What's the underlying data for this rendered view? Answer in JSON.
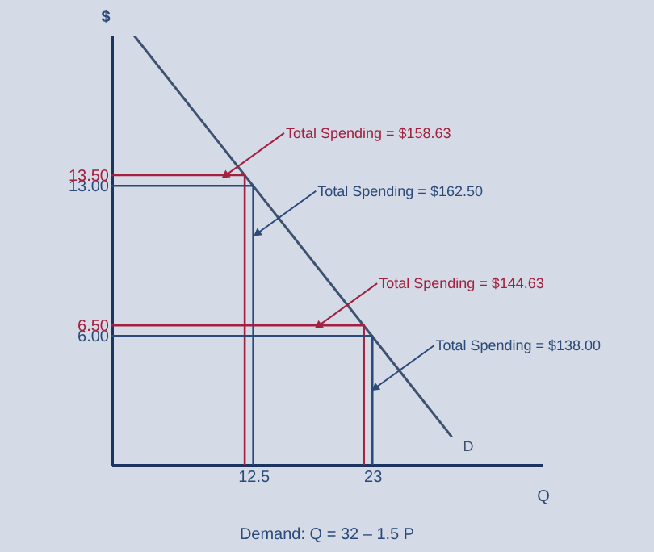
{
  "chart_data": {
    "type": "line",
    "title": "Demand: Q = 32 – 1.5 P",
    "xlabel": "Q",
    "ylabel": "$",
    "xlim": [
      0,
      38
    ],
    "ylim": [
      0,
      20
    ],
    "xticks": [
      12.5,
      23
    ],
    "yticks": [
      {
        "value": 6,
        "label": "6.00"
      },
      {
        "value": 6.5,
        "label": "6.50"
      },
      {
        "value": 13,
        "label": "13.00"
      },
      {
        "value": 13.5,
        "label": "13.50"
      }
    ],
    "grid": false,
    "marker": "none",
    "line_style": "solid",
    "series": [
      {
        "color": "#3d5170",
        "x": [
          2,
          30
        ],
        "values": [
          20,
          1.3
        ]
      },
      {
        "color": "#a3203f",
        "x": [
          0,
          11.75,
          11.75
        ],
        "values": [
          13.5,
          13.5,
          0
        ]
      },
      {
        "color": "#2b4a7a",
        "x": [
          0,
          12.5,
          12.5
        ],
        "values": [
          13,
          13,
          0
        ]
      },
      {
        "color": "#a3203f",
        "x": [
          0,
          22.25,
          22.25
        ],
        "values": [
          6.5,
          6.5,
          0
        ]
      },
      {
        "color": "#2b4a7a",
        "x": [
          0,
          23,
          23
        ],
        "values": [
          6,
          6,
          0
        ]
      }
    ],
    "annotations": [
      {
        "text": "D",
        "x": 30,
        "y": 1.3
      },
      {
        "text": "Total Spending = $158.63",
        "x": 10.1,
        "y": 13.5
      },
      {
        "text": "Total Spending = $162.50",
        "x": 12.9,
        "y": 10.8
      },
      {
        "text": "Total Spending = $144.63",
        "x": 18.3,
        "y": 6.5
      },
      {
        "text": "Total Spending = $138.00",
        "x": 23.3,
        "y": 3.6
      }
    ]
  }
}
